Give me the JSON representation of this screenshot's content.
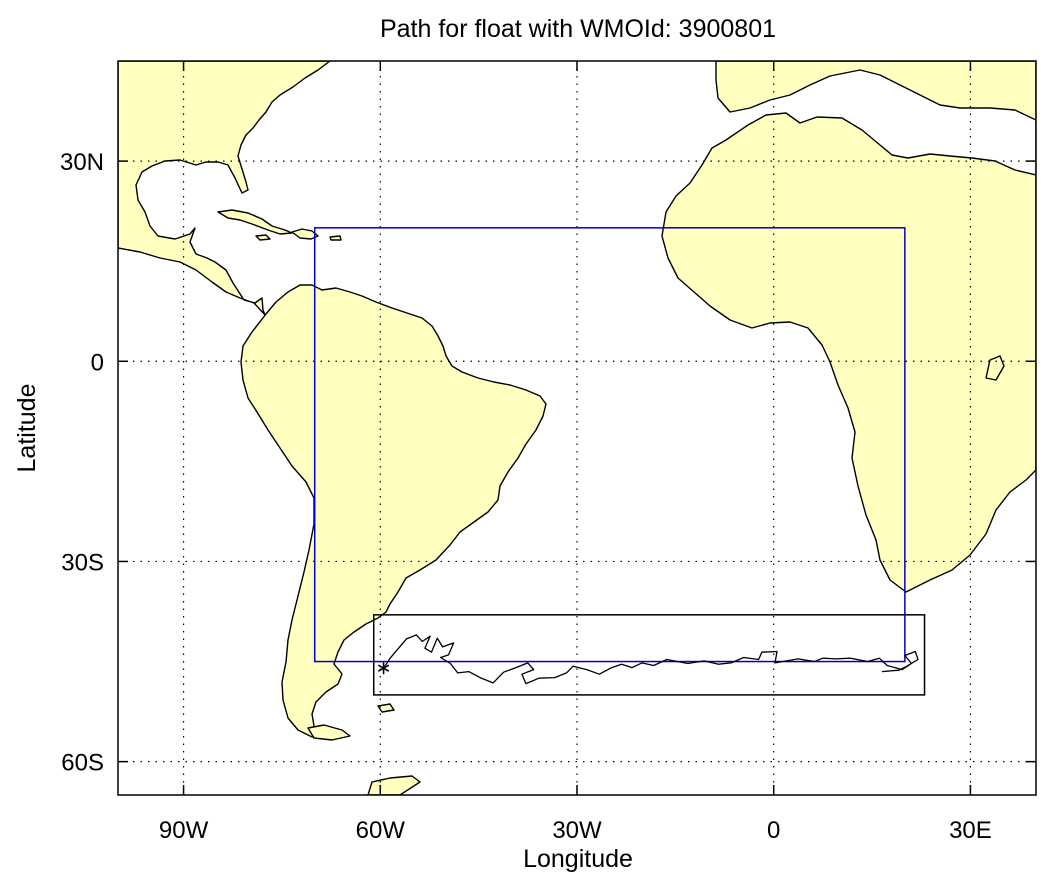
{
  "title": "Path for float with WMOId: 3900801",
  "xlabel": "Longitude",
  "ylabel": "Latitude",
  "x_ticks": [
    {
      "value": -90,
      "label": "90W"
    },
    {
      "value": -60,
      "label": "60W"
    },
    {
      "value": -30,
      "label": "30W"
    },
    {
      "value": 0,
      "label": "0"
    },
    {
      "value": 30,
      "label": "30E"
    }
  ],
  "y_ticks": [
    {
      "value": 30,
      "label": "30N"
    },
    {
      "value": 0,
      "label": "0"
    },
    {
      "value": -30,
      "label": "30S"
    },
    {
      "value": -60,
      "label": "60S"
    }
  ],
  "map": {
    "lon_range": [
      -100,
      40
    ],
    "lat_range": [
      -65,
      45
    ],
    "land_color": "#ffffc0",
    "ocean_color": "#ffffff",
    "coast_color": "#000000",
    "grid": "dotted"
  },
  "blue_region": {
    "lon": [
      -70,
      20
    ],
    "lat": [
      -45,
      20
    ],
    "color": "#0000cc"
  },
  "black_region": {
    "lon": [
      -61,
      23
    ],
    "lat": [
      -50,
      -38
    ],
    "color": "#000000"
  },
  "deployment_marker": {
    "lon": -59.5,
    "lat": -46,
    "symbol": "*"
  },
  "float_track": [
    [
      -59.5,
      -46
    ],
    [
      -58.5,
      -44.5
    ],
    [
      -57.2,
      -43
    ],
    [
      -56,
      -41.6
    ],
    [
      -54.5,
      -41
    ],
    [
      -53.6,
      -42
    ],
    [
      -52.4,
      -41.2
    ],
    [
      -53.2,
      -43
    ],
    [
      -52.2,
      -43.6
    ],
    [
      -51.3,
      -41.5
    ],
    [
      -50.5,
      -42.8
    ],
    [
      -48.8,
      -42.2
    ],
    [
      -49.6,
      -44
    ],
    [
      -50.8,
      -44.4
    ],
    [
      -49.3,
      -45.3
    ],
    [
      -48.2,
      -46.7
    ],
    [
      -46.5,
      -46.5
    ],
    [
      -44.8,
      -47.4
    ],
    [
      -42.8,
      -48.2
    ],
    [
      -41.2,
      -46.6
    ],
    [
      -39.3,
      -45.9
    ],
    [
      -37.5,
      -45.2
    ],
    [
      -36.6,
      -46.2
    ],
    [
      -38.4,
      -46.9
    ],
    [
      -37.8,
      -48.3
    ],
    [
      -35.8,
      -47.5
    ],
    [
      -33.4,
      -47.4
    ],
    [
      -31.6,
      -46.7
    ],
    [
      -30.6,
      -45.7
    ],
    [
      -28.5,
      -46.2
    ],
    [
      -26.6,
      -46.9
    ],
    [
      -24.7,
      -45.9
    ],
    [
      -23.2,
      -45.4
    ],
    [
      -21.6,
      -45.9
    ],
    [
      -20.1,
      -45.2
    ],
    [
      -18.3,
      -45.6
    ],
    [
      -16.3,
      -44.7
    ],
    [
      -13.1,
      -45.3
    ],
    [
      -10.6,
      -44.9
    ],
    [
      -8.4,
      -45.4
    ],
    [
      -6.5,
      -45.2
    ],
    [
      -4.6,
      -44.4
    ],
    [
      -2.3,
      -44.7
    ],
    [
      -1.8,
      -43.6
    ],
    [
      0.5,
      -43.5
    ],
    [
      0.2,
      -45.2
    ],
    [
      3.7,
      -44.6
    ],
    [
      6.2,
      -45.0
    ],
    [
      7.5,
      -44.5
    ],
    [
      9.5,
      -44.6
    ],
    [
      11.7,
      -44.5
    ],
    [
      14.3,
      -45.0
    ],
    [
      16.1,
      -44.5
    ],
    [
      17.3,
      -45.6
    ],
    [
      19.6,
      -46.2
    ],
    [
      21.0,
      -45.3
    ],
    [
      20.0,
      -44.1
    ],
    [
      21.6,
      -43.5
    ],
    [
      22.0,
      -44.7
    ],
    [
      20.3,
      -45.7
    ],
    [
      19.1,
      -46.3
    ],
    [
      16.5,
      -46.5
    ]
  ]
}
